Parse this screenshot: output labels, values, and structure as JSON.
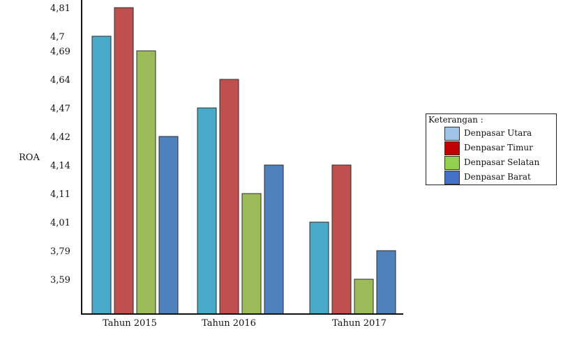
{
  "chart_data": {
    "type": "bar",
    "title": "",
    "xlabel": "",
    "ylabel": "ROA",
    "categories": [
      "Tahun 2015",
      "Tahun 2016",
      "Tahun 2017"
    ],
    "y_tick_labels": [
      "4,81",
      "4,7",
      "4,69",
      "4,64",
      "4,47",
      "4,42",
      "4,14",
      "4,11",
      "4,01",
      "3,79",
      "3,59"
    ],
    "series": [
      {
        "name": "Denpasar Utara",
        "color": "#48aac8",
        "values": [
          4.7,
          4.47,
          4.01
        ]
      },
      {
        "name": "Denpasar Timur",
        "color": "#c0504d",
        "values": [
          4.81,
          4.64,
          4.14
        ]
      },
      {
        "name": "Denpasar Selatan",
        "color": "#9bbb59",
        "values": [
          4.69,
          4.11,
          3.59
        ]
      },
      {
        "name": "Denpasar Barat",
        "color": "#4f81bd",
        "values": [
          4.42,
          4.14,
          3.79
        ]
      }
    ],
    "legend_title": "Keterangan :",
    "legend_position": "right",
    "grid": false
  }
}
